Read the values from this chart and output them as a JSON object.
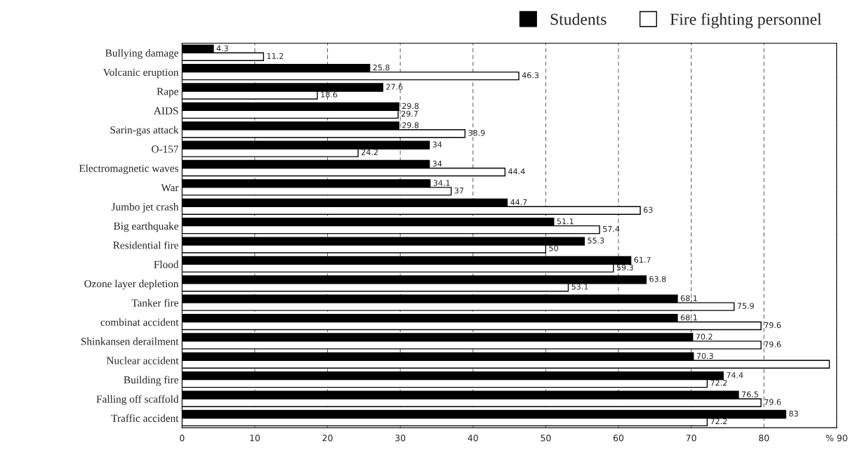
{
  "chart_data": {
    "type": "bar",
    "orientation": "horizontal",
    "categories": [
      "Bullying damage",
      "Volcanic eruption",
      "Rape",
      "AIDS",
      "Sarin-gas attack",
      "O-157",
      "Electromagnetic waves",
      "War",
      "Jumbo jet crash",
      "Big earthquake",
      "Residential fire",
      "Flood",
      "Ozone layer depletion",
      "Tanker fire",
      "combinat accident",
      "Shinkansen derailment",
      "Nuclear accident",
      "Building fire",
      "Falling off scaffold",
      "Traffic accident"
    ],
    "series": [
      {
        "name": "Students",
        "color": "#000000",
        "values": [
          4.3,
          25.8,
          27.6,
          29.8,
          29.8,
          34,
          34,
          34.1,
          44.7,
          51.1,
          55.3,
          61.7,
          63.8,
          68.1,
          68.1,
          70.2,
          70.3,
          74.4,
          76.5,
          83
        ],
        "value_labels": [
          "4.3",
          "25.8",
          "27.6",
          "29.8",
          "29.8",
          "34",
          "34",
          "34.1",
          "44.7",
          "51.1",
          "55.3",
          "61.7",
          "63.8",
          "68.1",
          "68.1",
          "70.2",
          "70.3",
          "74.4",
          "76.5",
          "83"
        ]
      },
      {
        "name": "Fire fighting personnel",
        "color": "#ffffff",
        "values": [
          11.2,
          46.3,
          18.6,
          29.7,
          38.9,
          24.2,
          44.4,
          37,
          63,
          57.4,
          50,
          59.3,
          53.1,
          75.9,
          79.6,
          79.6,
          89,
          72.2,
          79.6,
          72.2
        ],
        "value_labels": [
          "11.2",
          "46.3",
          "18.6",
          "29.7",
          "38.9",
          "24.2",
          "44.4",
          "37",
          "63",
          "57.4",
          "50",
          "59.3",
          "53.1",
          "75.9",
          "79.6",
          "79.6",
          null,
          "72.2",
          "79.6",
          "72.2"
        ]
      }
    ],
    "xlim": [
      0,
      90
    ],
    "xticks": [
      0,
      10,
      20,
      30,
      40,
      50,
      60,
      70,
      80,
      {
        "value": 90,
        "label": "% 90"
      }
    ],
    "grid": "x",
    "legend": "top right"
  }
}
